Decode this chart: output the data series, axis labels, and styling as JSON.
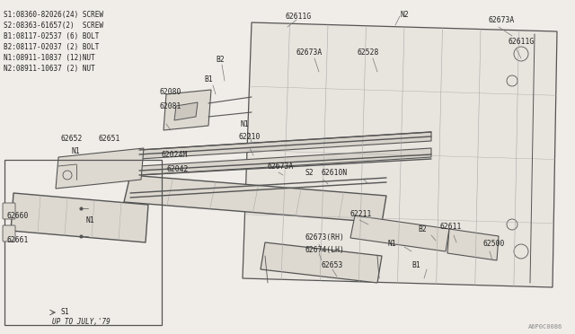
{
  "bg_color": "#f0ede8",
  "diagram_color": "#555555",
  "text_color": "#222222",
  "light_color": "#aaaaaa",
  "border_color": "#888888",
  "legend_lines": [
    "S1:08360-82026(24) SCREW",
    "S2:08363-61657(2)  SCREW",
    "B1:08117-02537 (6) BOLT",
    "B2:08117-02037 (2) BOLT",
    "N1:08911-10837 (12)NUT",
    "N2:08911-10637 (2) NUT"
  ],
  "catalog_num": "A6P0C0086",
  "box_label": "UP TO JULY,'79",
  "font_legend": 5.5,
  "font_label": 5.8
}
